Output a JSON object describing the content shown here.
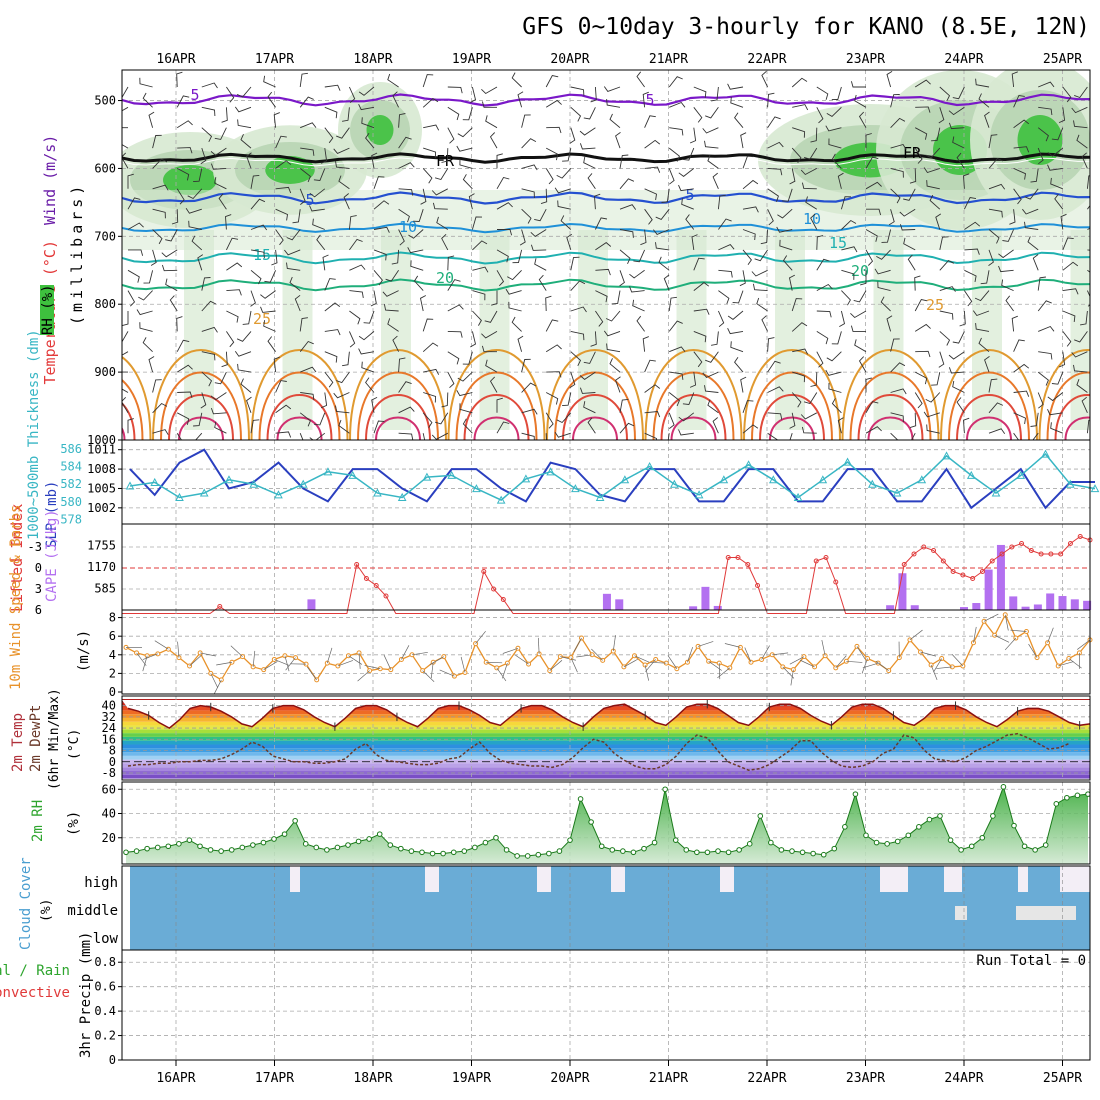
{
  "title": "GFS 0~10day 3-hourly for KANO (8.5E, 12N)",
  "dates": [
    "16APR",
    "17APR",
    "18APR",
    "19APR",
    "20APR",
    "21APR",
    "22APR",
    "23APR",
    "24APR",
    "25APR"
  ],
  "colors": {
    "wind_iso": "#7a18c8",
    "freezing": "#000000",
    "rh_light": "#d7e9d1",
    "rh_mid": "#b6d3b2",
    "rh_dark": "#3ec13e",
    "slp": "#2a3fbf",
    "thickness": "#38b6c4",
    "lifted": "#e03a3a",
    "cape": "#b370f0",
    "wind10": "#e8922a",
    "barbs": "#666666",
    "rh2m": "#3aa83a",
    "cloud": "#6aacd6"
  },
  "panels": {
    "main": {
      "ylabel_wind": "Wind (m/s)",
      "ylabel_temp": "Temperature (°C)",
      "ylabel_rh": "RH (%)",
      "ylabel_unit": "(millibars)",
      "y_ticks": [
        "500",
        "600",
        "700",
        "800",
        "900",
        "1000"
      ],
      "contour_labels": [
        "5",
        "5",
        "FR",
        "FR",
        "5",
        "5",
        "10",
        "10",
        "15",
        "15",
        "20",
        "20",
        "25",
        "25"
      ]
    },
    "slp": {
      "ylabel_thk": "1000~500mb Thickness (dm)",
      "ylabel_slp": "SLP (mb)",
      "thk_ticks": [
        "586",
        "584",
        "582",
        "580",
        "578"
      ],
      "slp_ticks": [
        "1011",
        "1008",
        "1005",
        "1002"
      ]
    },
    "li": {
      "ylabel_li": "Lifted Index",
      "ylabel_cape": "CAPE (J/kg)",
      "li_ticks": [
        "-3",
        "0",
        "3",
        "6"
      ],
      "cape_ticks": [
        "1755",
        "1170",
        "585"
      ]
    },
    "wind": {
      "ylabel": "10m Wind Speed & Barbs",
      "unit": "(m/s)",
      "ticks": [
        "8",
        "6",
        "4",
        "2",
        "0"
      ]
    },
    "temp": {
      "ylabel_t": "2m Temp",
      "ylabel_td": "2m DewPt",
      "ylabel_mm": "(6hr Min/Max)",
      "unit": "(°C)",
      "ticks": [
        "40",
        "32",
        "24",
        "16",
        "8",
        "0",
        "-8"
      ]
    },
    "rh": {
      "ylabel": "2m RH",
      "unit": "(%)",
      "ticks": [
        "60",
        "40",
        "20"
      ]
    },
    "cloud": {
      "ylabel": "Cloud Cover",
      "unit": "(%)",
      "levels": [
        "high",
        "middle",
        "low"
      ]
    },
    "precip": {
      "ylabel_a": "Total / Rain",
      "ylabel_b": "Convective",
      "ylabel_c": "3hr Precip (mm)",
      "ticks": [
        "0.8",
        "0.6",
        "0.4",
        "0.2",
        "0"
      ],
      "run_total": "Run Total = 0"
    }
  },
  "chart_data": [
    {
      "type": "line",
      "title": "SLP (mb)",
      "x": [
        "15APR12",
        "15APR18",
        "16APR00",
        "16APR06",
        "16APR12",
        "16APR18",
        "17APR00",
        "17APR06",
        "17APR12",
        "17APR18",
        "18APR00",
        "18APR06",
        "18APR12",
        "18APR18",
        "19APR00",
        "19APR06",
        "19APR12",
        "19APR18",
        "20APR00",
        "20APR06",
        "20APR12",
        "20APR18",
        "21APR00",
        "21APR06",
        "21APR12",
        "21APR18",
        "22APR00",
        "22APR06",
        "22APR12",
        "22APR18",
        "23APR00",
        "23APR06",
        "23APR12",
        "23APR18",
        "24APR00",
        "24APR06",
        "24APR12",
        "24APR18",
        "25APR00",
        "25APR06"
      ],
      "series": [
        {
          "name": "SLP (mb)",
          "values": [
            1008,
            1004,
            1009,
            1011,
            1005,
            1006,
            1009,
            1005,
            1003,
            1008,
            1008,
            1005,
            1003,
            1008,
            1008,
            1005,
            1003,
            1009,
            1008,
            1004,
            1003,
            1008,
            1008,
            1003,
            1003,
            1008,
            1008,
            1003,
            1003,
            1008,
            1008,
            1003,
            1003,
            1008,
            1002,
            1005,
            1008,
            1002,
            1006,
            1006
          ]
        },
        {
          "name": "Thickness (dm)",
          "values": [
            581.8,
            582.2,
            580.5,
            581.0,
            582.5,
            582.0,
            580.8,
            582.0,
            583.4,
            583.0,
            581.0,
            580.5,
            582.8,
            583.0,
            581.5,
            580.2,
            582.6,
            583.4,
            581.5,
            580.5,
            582.5,
            584.0,
            582.0,
            580.8,
            582.5,
            584.2,
            582.5,
            580.5,
            582.5,
            584.5,
            582.0,
            581.0,
            582.5,
            585.2,
            583.0,
            581.0,
            583.0,
            585.4,
            582.0,
            581.5
          ]
        }
      ]
    },
    {
      "type": "bar",
      "title": "CAPE (J/kg)",
      "x": [
        "17APR09",
        "20APR09",
        "20APR12",
        "21APR06",
        "21APR09",
        "21APR12",
        "23APR06",
        "23APR09",
        "23APR12",
        "24APR00",
        "24APR03",
        "24APR06",
        "24APR09",
        "24APR12",
        "24APR15",
        "24APR18",
        "24APR21",
        "25APR00",
        "25APR03",
        "25APR06"
      ],
      "values": [
        290,
        440,
        290,
        100,
        630,
        110,
        130,
        1000,
        130,
        80,
        190,
        1100,
        1770,
        370,
        90,
        150,
        450,
        380,
        290,
        250
      ],
      "ylim": [
        0,
        1755
      ]
    },
    {
      "type": "line",
      "title": "10m Wind Speed (m/s)",
      "values": [
        4.8,
        4.2,
        3.9,
        4.1,
        4.6,
        3.7,
        2.8,
        4.2,
        2.0,
        1.3,
        3.2,
        3.8,
        2.7,
        2.4,
        3.5,
        3.9,
        3.7,
        3.0,
        1.3,
        3.1,
        2.8,
        3.9,
        4.2,
        2.3,
        2.5,
        2.4,
        3.5,
        4.0,
        2.3,
        3.2,
        3.8,
        1.7,
        2.1,
        5.2,
        3.2,
        2.6,
        3.1,
        4.7,
        3.0,
        4.1,
        2.3,
        3.8,
        3.7,
        5.8,
        4.0,
        3.4,
        4.4,
        2.7,
        3.9,
        2.9,
        3.5,
        3.1,
        2.5,
        3.2,
        4.9,
        3.3,
        3.1,
        2.6,
        4.8,
        3.2,
        3.5,
        4.0,
        2.7,
        2.4,
        3.8,
        2.7,
        3.9,
        2.6,
        3.3,
        4.9,
        3.6,
        3.1,
        2.3,
        3.7,
        5.6,
        4.3,
        2.9,
        3.6,
        2.7,
        2.8,
        5.3,
        7.6,
        6.1,
        8.3,
        5.8,
        6.5,
        3.7,
        5.3,
        2.8,
        3.6,
        4.2,
        5.6
      ],
      "ylim": [
        0,
        8
      ]
    },
    {
      "type": "area",
      "title": "2m RH (%)",
      "values": [
        8,
        9,
        11,
        12,
        13,
        15,
        18,
        13,
        10,
        9,
        10,
        12,
        14,
        16,
        19,
        23,
        34,
        15,
        12,
        10,
        12,
        14,
        17,
        19,
        23,
        14,
        11,
        9,
        8,
        7,
        7,
        8,
        9,
        12,
        16,
        20,
        10,
        5,
        5,
        6,
        7,
        9,
        18,
        52,
        33,
        13,
        10,
        9,
        8,
        11,
        16,
        60,
        18,
        10,
        8,
        8,
        9,
        8,
        10,
        15,
        38,
        16,
        10,
        9,
        8,
        7,
        6,
        11,
        29,
        56,
        22,
        16,
        15,
        17,
        22,
        29,
        35,
        38,
        18,
        10,
        13,
        20,
        38,
        62,
        30,
        13,
        10,
        14,
        48,
        53,
        55,
        56
      ],
      "ylim": [
        0,
        64
      ]
    },
    {
      "type": "line",
      "title": "2m Temp / DewPt (°C)",
      "series": [
        {
          "name": "2m Temp",
          "values": [
            38,
            36,
            33,
            28,
            24,
            30,
            38,
            40,
            39,
            36,
            32,
            27,
            25,
            31,
            38,
            40,
            40,
            37,
            32,
            28,
            25,
            31,
            38,
            40,
            40,
            37,
            32,
            28,
            25,
            31,
            38,
            40,
            40,
            37,
            33,
            28,
            26,
            32,
            38,
            40,
            40,
            37,
            32,
            28,
            25,
            32,
            38,
            40,
            41,
            37,
            33,
            28,
            26,
            32,
            39,
            41,
            41,
            38,
            33,
            28,
            26,
            32,
            39,
            41,
            41,
            38,
            33,
            29,
            26,
            32,
            39,
            41,
            41,
            38,
            33,
            28,
            26,
            31,
            38,
            40,
            40,
            37,
            32,
            28,
            25,
            30,
            36,
            38,
            38,
            36,
            32,
            28,
            26,
            27
          ]
        },
        {
          "name": "2m DewPt",
          "values": [
            -3,
            -2,
            -2,
            -1,
            -1,
            0,
            0,
            1,
            1,
            2,
            5,
            9,
            14,
            11,
            4,
            2,
            0,
            0,
            -1,
            -1,
            0,
            2,
            9,
            13,
            5,
            1,
            0,
            -1,
            -2,
            -2,
            -1,
            2,
            3,
            9,
            14,
            6,
            1,
            -1,
            -2,
            -3,
            -3,
            -4,
            -2,
            3,
            10,
            16,
            14,
            6,
            1,
            -3,
            -5,
            -5,
            -2,
            4,
            13,
            19,
            17,
            8,
            0,
            -3,
            -6,
            -5,
            -2,
            3,
            8,
            15,
            15,
            7,
            1,
            -3,
            -4,
            -3,
            0,
            6,
            9,
            19,
            17,
            8,
            2,
            1,
            0,
            3,
            8,
            11,
            15,
            19,
            20,
            17,
            13,
            9,
            10,
            13
          ]
        }
      ]
    }
  ]
}
